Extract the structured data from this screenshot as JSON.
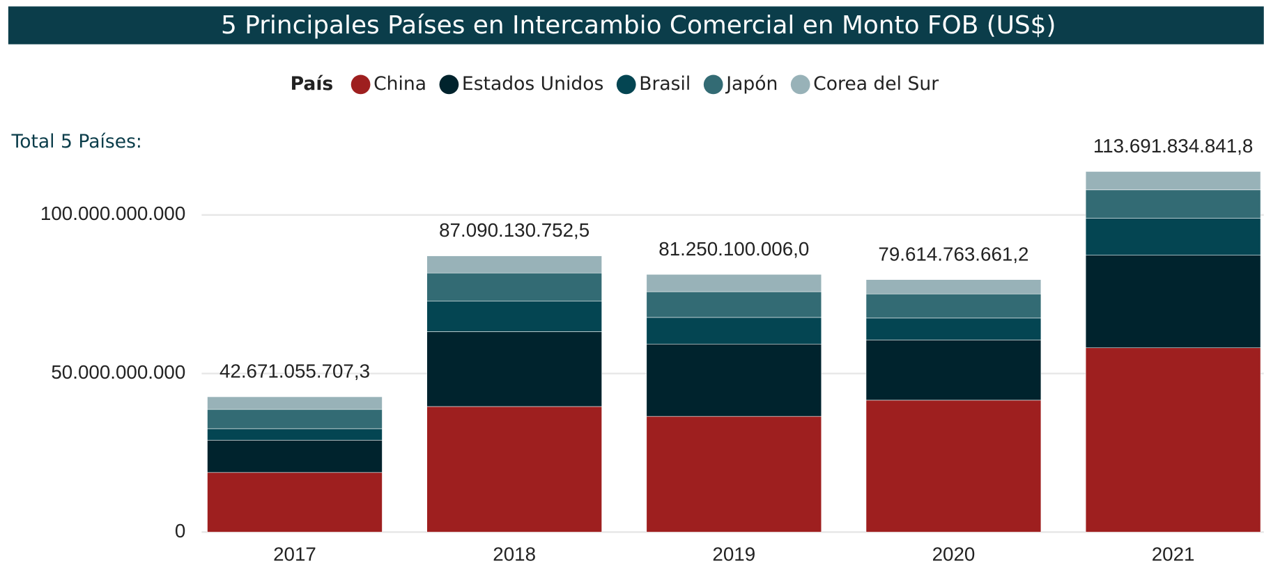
{
  "chart_data": {
    "type": "stacked_bar",
    "title": "5 Principales Países en Intercambio Comercial en Monto FOB (US$)",
    "legend_title": "País",
    "total_caption": "Total  5 Países:",
    "categories": [
      "2017",
      "2018",
      "2019",
      "2020",
      "2021"
    ],
    "series": [
      {
        "name": "China",
        "color": "#9e1f1f",
        "values": [
          18800000000,
          39600000000,
          36500000000,
          41600000000,
          58100000000
        ]
      },
      {
        "name": "Estados Unidos",
        "color": "#00232d",
        "values": [
          10200000000,
          23600000000,
          22800000000,
          19000000000,
          29200000000
        ]
      },
      {
        "name": "Brasil",
        "color": "#044552",
        "values": [
          3600000000,
          9600000000,
          8400000000,
          6900000000,
          11700000000
        ]
      },
      {
        "name": "Japón",
        "color": "#336b74",
        "values": [
          6100000000,
          8900000000,
          8100000000,
          7600000000,
          8900000000
        ]
      },
      {
        "name": "Corea del Sur",
        "color": "#98b2b8",
        "values": [
          3970000000,
          5390000000,
          5450000000,
          4510000000,
          5790000000
        ]
      }
    ],
    "totals": [
      42671055707.3,
      87090130752.5,
      81250100006.0,
      79614763661.2,
      113691834841.8
    ],
    "total_labels": [
      "42.671.055.707,3",
      "87.090.130.752,5",
      "81.250.100.006,0",
      "79.614.763.661,2",
      "113.691.834.841,8"
    ],
    "ylim": [
      0,
      115000000000
    ],
    "yticks": [
      0,
      {
        "value": 50000000000,
        "label": "50.000.000.000"
      },
      {
        "value": 100000000000,
        "label": "100.000.000.000"
      }
    ],
    "grid": true
  }
}
